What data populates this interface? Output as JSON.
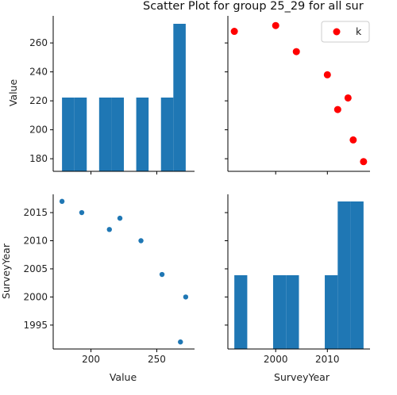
{
  "chart_data": {
    "title": "Scatter Plot for group 25_29 for all sur",
    "type": "pairplot",
    "variables": [
      "Value",
      "SurveyYear"
    ],
    "colors": {
      "hist": "#1f77b4",
      "scatter_lower": "#1f77b4",
      "scatter_upper": "#ff0000"
    },
    "legend": {
      "label": "k",
      "placement": "top-right"
    },
    "points": [
      {
        "value": 178,
        "year": 2017
      },
      {
        "value": 193,
        "year": 2015
      },
      {
        "value": 214,
        "year": 2012
      },
      {
        "value": 222,
        "year": 2014
      },
      {
        "value": 238,
        "year": 2010
      },
      {
        "value": 254,
        "year": 2004
      },
      {
        "value": 272,
        "year": 2000
      },
      {
        "value": 268,
        "year": 1992
      }
    ],
    "value_hist": {
      "bins": [
        {
          "x0": 178.0,
          "x1": 187.4,
          "density": 0.5
        },
        {
          "x0": 187.4,
          "x1": 196.8,
          "density": 0.5
        },
        {
          "x0": 196.8,
          "x1": 206.2,
          "density": 0
        },
        {
          "x0": 206.2,
          "x1": 215.6,
          "density": 0.5
        },
        {
          "x0": 215.6,
          "x1": 225.0,
          "density": 0.5
        },
        {
          "x0": 225.0,
          "x1": 234.4,
          "density": 0
        },
        {
          "x0": 234.4,
          "x1": 243.8,
          "density": 0.5
        },
        {
          "x0": 243.8,
          "x1": 253.2,
          "density": 0
        },
        {
          "x0": 253.2,
          "x1": 262.6,
          "density": 0.5
        },
        {
          "x0": 262.6,
          "x1": 272.0,
          "density": 1.0
        }
      ]
    },
    "year_hist": {
      "bins": [
        {
          "x0": 1992.0,
          "x1": 1994.5,
          "density": 0.5
        },
        {
          "x0": 1994.5,
          "x1": 1997.0,
          "density": 0
        },
        {
          "x0": 1997.0,
          "x1": 1999.5,
          "density": 0
        },
        {
          "x0": 1999.5,
          "x1": 2002.0,
          "density": 0.5
        },
        {
          "x0": 2002.0,
          "x1": 2004.5,
          "density": 0.5
        },
        {
          "x0": 2004.5,
          "x1": 2007.0,
          "density": 0
        },
        {
          "x0": 2007.0,
          "x1": 2009.5,
          "density": 0
        },
        {
          "x0": 2009.5,
          "x1": 2012.0,
          "density": 0.5
        },
        {
          "x0": 2012.0,
          "x1": 2014.5,
          "density": 1.0
        },
        {
          "x0": 2014.5,
          "x1": 2017.0,
          "density": 1.0
        }
      ]
    },
    "axes": {
      "value": {
        "label": "Value",
        "range": [
          171.3,
          278.7
        ],
        "ticks": [
          180,
          200,
          220,
          240,
          260
        ],
        "bottom_ticks": [
          200,
          250
        ]
      },
      "year": {
        "label": "SurveyYear",
        "range": [
          1990.75,
          2018.25
        ],
        "ticks": [
          1995,
          2000,
          2005,
          2010,
          2015
        ],
        "bottom_ticks": [
          2000,
          2010
        ]
      }
    }
  }
}
